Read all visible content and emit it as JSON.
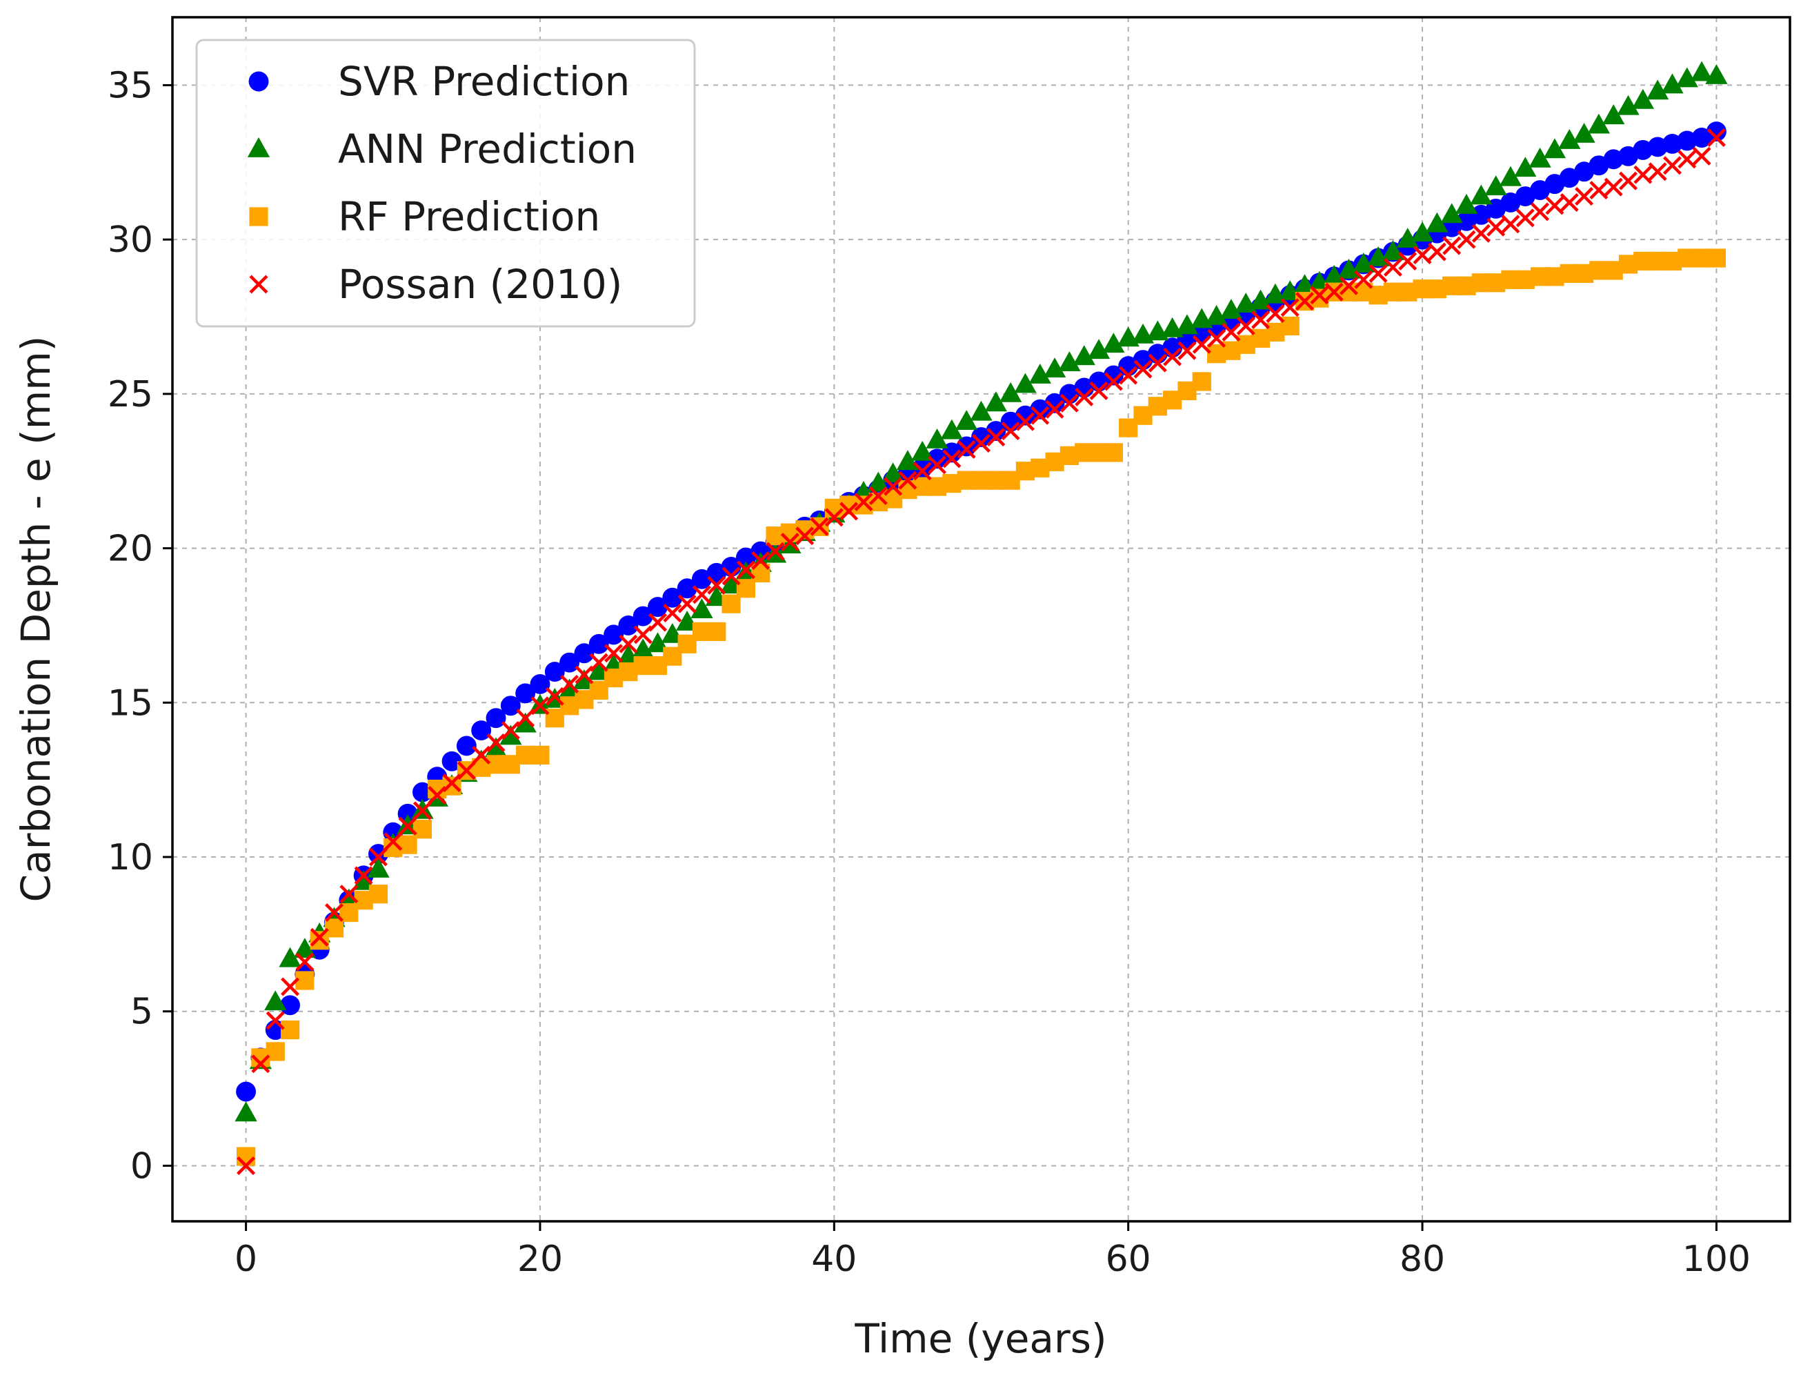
{
  "chart_data": {
    "type": "scatter",
    "title": "",
    "xlabel": "Time (years)",
    "ylabel": "Carbonation Depth - e (mm)",
    "xlim": [
      -5,
      105
    ],
    "ylim": [
      -1.8,
      37.2
    ],
    "xticks": [
      0,
      20,
      40,
      60,
      80,
      100
    ],
    "yticks": [
      0,
      5,
      10,
      15,
      20,
      25,
      30,
      35
    ],
    "grid": true,
    "legend_position": "top-left",
    "series": [
      {
        "name": "SVR Prediction",
        "marker": "circle",
        "color": "#0000ff",
        "x": [
          0,
          1,
          2,
          3,
          4,
          5,
          6,
          7,
          8,
          9,
          10,
          11,
          12,
          13,
          14,
          15,
          16,
          17,
          18,
          19,
          20,
          21,
          22,
          23,
          24,
          25,
          26,
          27,
          28,
          29,
          30,
          31,
          32,
          33,
          34,
          35,
          36,
          37,
          38,
          39,
          40,
          41,
          42,
          43,
          44,
          45,
          46,
          47,
          48,
          49,
          50,
          51,
          52,
          53,
          54,
          55,
          56,
          57,
          58,
          59,
          60,
          61,
          62,
          63,
          64,
          65,
          66,
          67,
          68,
          69,
          70,
          71,
          72,
          73,
          74,
          75,
          76,
          77,
          78,
          79,
          80,
          81,
          82,
          83,
          84,
          85,
          86,
          87,
          88,
          89,
          90,
          91,
          92,
          93,
          94,
          95,
          96,
          97,
          98,
          99,
          100
        ],
        "y": [
          2.4,
          3.5,
          4.4,
          5.2,
          6.2,
          7.0,
          7.9,
          8.6,
          9.4,
          10.1,
          10.8,
          11.4,
          12.1,
          12.6,
          13.1,
          13.6,
          14.1,
          14.5,
          14.9,
          15.3,
          15.6,
          16.0,
          16.3,
          16.6,
          16.9,
          17.2,
          17.5,
          17.8,
          18.1,
          18.4,
          18.7,
          19.0,
          19.2,
          19.4,
          19.7,
          19.9,
          20.2,
          20.4,
          20.7,
          20.9,
          21.2,
          21.5,
          21.7,
          21.9,
          22.2,
          22.4,
          22.6,
          22.9,
          23.1,
          23.3,
          23.6,
          23.8,
          24.1,
          24.3,
          24.5,
          24.7,
          25.0,
          25.2,
          25.4,
          25.6,
          25.9,
          26.1,
          26.3,
          26.5,
          26.8,
          27.0,
          27.2,
          27.4,
          27.6,
          27.8,
          28.0,
          28.2,
          28.4,
          28.6,
          28.8,
          29.0,
          29.2,
          29.4,
          29.6,
          29.8,
          30.0,
          30.2,
          30.4,
          30.6,
          30.8,
          31.0,
          31.2,
          31.4,
          31.6,
          31.8,
          32.0,
          32.2,
          32.4,
          32.6,
          32.7,
          32.9,
          33.0,
          33.1,
          33.2,
          33.3,
          33.5
        ]
      },
      {
        "name": "ANN Prediction",
        "marker": "triangle",
        "color": "#008000",
        "x": [
          0,
          1,
          2,
          3,
          4,
          5,
          6,
          7,
          8,
          9,
          10,
          11,
          12,
          13,
          14,
          15,
          16,
          17,
          18,
          19,
          20,
          21,
          22,
          23,
          24,
          25,
          26,
          27,
          28,
          29,
          30,
          31,
          32,
          33,
          34,
          35,
          36,
          37,
          38,
          39,
          40,
          41,
          42,
          43,
          44,
          45,
          46,
          47,
          48,
          49,
          50,
          51,
          52,
          53,
          54,
          55,
          56,
          57,
          58,
          59,
          60,
          61,
          62,
          63,
          64,
          65,
          66,
          67,
          68,
          69,
          70,
          71,
          72,
          73,
          74,
          75,
          76,
          77,
          78,
          79,
          80,
          81,
          82,
          83,
          84,
          85,
          86,
          87,
          88,
          89,
          90,
          91,
          92,
          93,
          94,
          95,
          96,
          97,
          98,
          99,
          100
        ],
        "y": [
          1.7,
          3.4,
          5.3,
          6.7,
          7.0,
          7.5,
          8.0,
          8.6,
          9.2,
          9.6,
          10.4,
          11.0,
          11.5,
          11.9,
          12.3,
          12.7,
          13.1,
          13.5,
          13.9,
          14.3,
          14.9,
          15.1,
          15.4,
          15.7,
          16.0,
          16.2,
          16.5,
          16.7,
          16.9,
          17.2,
          17.6,
          18.0,
          18.4,
          18.8,
          19.2,
          19.5,
          19.8,
          20.1,
          20.5,
          20.8,
          21.1,
          21.4,
          21.8,
          22.1,
          22.4,
          22.8,
          23.1,
          23.5,
          23.8,
          24.1,
          24.4,
          24.7,
          25.0,
          25.3,
          25.6,
          25.8,
          26.0,
          26.2,
          26.4,
          26.6,
          26.8,
          26.9,
          27.0,
          27.1,
          27.2,
          27.4,
          27.5,
          27.7,
          27.9,
          28.0,
          28.2,
          28.3,
          28.5,
          28.6,
          28.8,
          29.0,
          29.2,
          29.4,
          29.6,
          30.0,
          30.2,
          30.5,
          30.8,
          31.1,
          31.4,
          31.7,
          32.0,
          32.3,
          32.6,
          32.9,
          33.2,
          33.4,
          33.7,
          34.0,
          34.3,
          34.5,
          34.8,
          35.0,
          35.2,
          35.4,
          35.3
        ]
      },
      {
        "name": "RF Prediction",
        "marker": "square",
        "color": "#ffa500",
        "x": [
          0,
          1,
          2,
          3,
          4,
          5,
          6,
          7,
          8,
          9,
          10,
          11,
          12,
          13,
          14,
          15,
          16,
          17,
          18,
          19,
          20,
          21,
          22,
          23,
          24,
          25,
          26,
          27,
          28,
          29,
          30,
          31,
          32,
          33,
          34,
          35,
          36,
          37,
          38,
          39,
          40,
          41,
          42,
          43,
          44,
          45,
          46,
          47,
          48,
          49,
          50,
          51,
          52,
          53,
          54,
          55,
          56,
          57,
          58,
          59,
          60,
          61,
          62,
          63,
          64,
          65,
          66,
          67,
          68,
          69,
          70,
          71,
          72,
          73,
          74,
          75,
          76,
          77,
          78,
          79,
          80,
          81,
          82,
          83,
          84,
          85,
          86,
          87,
          88,
          89,
          90,
          91,
          92,
          93,
          94,
          95,
          96,
          97,
          98,
          99,
          100
        ],
        "y": [
          0.3,
          3.5,
          3.7,
          4.4,
          6.0,
          7.3,
          7.7,
          8.2,
          8.6,
          8.8,
          10.3,
          10.4,
          10.9,
          12.2,
          12.3,
          12.8,
          12.9,
          13.0,
          13.0,
          13.3,
          13.3,
          14.5,
          14.9,
          15.1,
          15.4,
          15.8,
          16.0,
          16.2,
          16.2,
          16.5,
          16.9,
          17.3,
          17.3,
          18.2,
          18.7,
          19.2,
          20.4,
          20.5,
          20.6,
          20.7,
          21.3,
          21.4,
          21.4,
          21.5,
          21.6,
          21.9,
          22.0,
          22.0,
          22.1,
          22.2,
          22.2,
          22.2,
          22.2,
          22.5,
          22.6,
          22.8,
          23.0,
          23.1,
          23.1,
          23.1,
          23.9,
          24.3,
          24.6,
          24.8,
          25.1,
          25.4,
          26.3,
          26.4,
          26.6,
          26.8,
          27.0,
          27.2,
          28.0,
          28.1,
          28.3,
          28.3,
          28.3,
          28.2,
          28.3,
          28.3,
          28.4,
          28.4,
          28.5,
          28.5,
          28.6,
          28.6,
          28.7,
          28.7,
          28.8,
          28.8,
          28.9,
          28.9,
          29.0,
          29.0,
          29.2,
          29.3,
          29.3,
          29.3,
          29.4,
          29.4,
          29.4
        ]
      },
      {
        "name": "Possan (2010)",
        "marker": "x",
        "color": "#ff0000",
        "x": [
          0,
          1,
          2,
          3,
          4,
          5,
          6,
          7,
          8,
          9,
          10,
          11,
          12,
          13,
          14,
          15,
          16,
          17,
          18,
          19,
          20,
          21,
          22,
          23,
          24,
          25,
          26,
          27,
          28,
          29,
          30,
          31,
          32,
          33,
          34,
          35,
          36,
          37,
          38,
          39,
          40,
          41,
          42,
          43,
          44,
          45,
          46,
          47,
          48,
          49,
          50,
          51,
          52,
          53,
          54,
          55,
          56,
          57,
          58,
          59,
          60,
          61,
          62,
          63,
          64,
          65,
          66,
          67,
          68,
          69,
          70,
          71,
          72,
          73,
          74,
          75,
          76,
          77,
          78,
          79,
          80,
          81,
          82,
          83,
          84,
          85,
          86,
          87,
          88,
          89,
          90,
          91,
          92,
          93,
          94,
          95,
          96,
          97,
          98,
          99,
          100
        ],
        "y": [
          0.0,
          3.3,
          4.7,
          5.8,
          6.6,
          7.4,
          8.2,
          8.8,
          9.4,
          10.0,
          10.5,
          11.0,
          11.5,
          12.0,
          12.4,
          12.8,
          13.3,
          13.7,
          14.1,
          14.5,
          14.9,
          15.2,
          15.6,
          15.9,
          16.3,
          16.6,
          16.9,
          17.2,
          17.6,
          17.9,
          18.2,
          18.5,
          18.8,
          19.1,
          19.3,
          19.6,
          19.9,
          20.2,
          20.4,
          20.7,
          21.0,
          21.2,
          21.5,
          21.7,
          22.0,
          22.2,
          22.5,
          22.7,
          22.9,
          23.2,
          23.4,
          23.6,
          23.8,
          24.1,
          24.3,
          24.5,
          24.7,
          24.9,
          25.1,
          25.4,
          25.6,
          25.8,
          26.0,
          26.2,
          26.4,
          26.6,
          26.8,
          27.0,
          27.2,
          27.4,
          27.6,
          27.8,
          28.0,
          28.2,
          28.3,
          28.5,
          28.7,
          28.9,
          29.1,
          29.3,
          29.5,
          29.6,
          29.8,
          30.0,
          30.2,
          30.4,
          30.5,
          30.7,
          30.9,
          31.1,
          31.2,
          31.4,
          31.6,
          31.7,
          31.9,
          32.1,
          32.2,
          32.4,
          32.6,
          32.7,
          33.3
        ]
      }
    ]
  }
}
